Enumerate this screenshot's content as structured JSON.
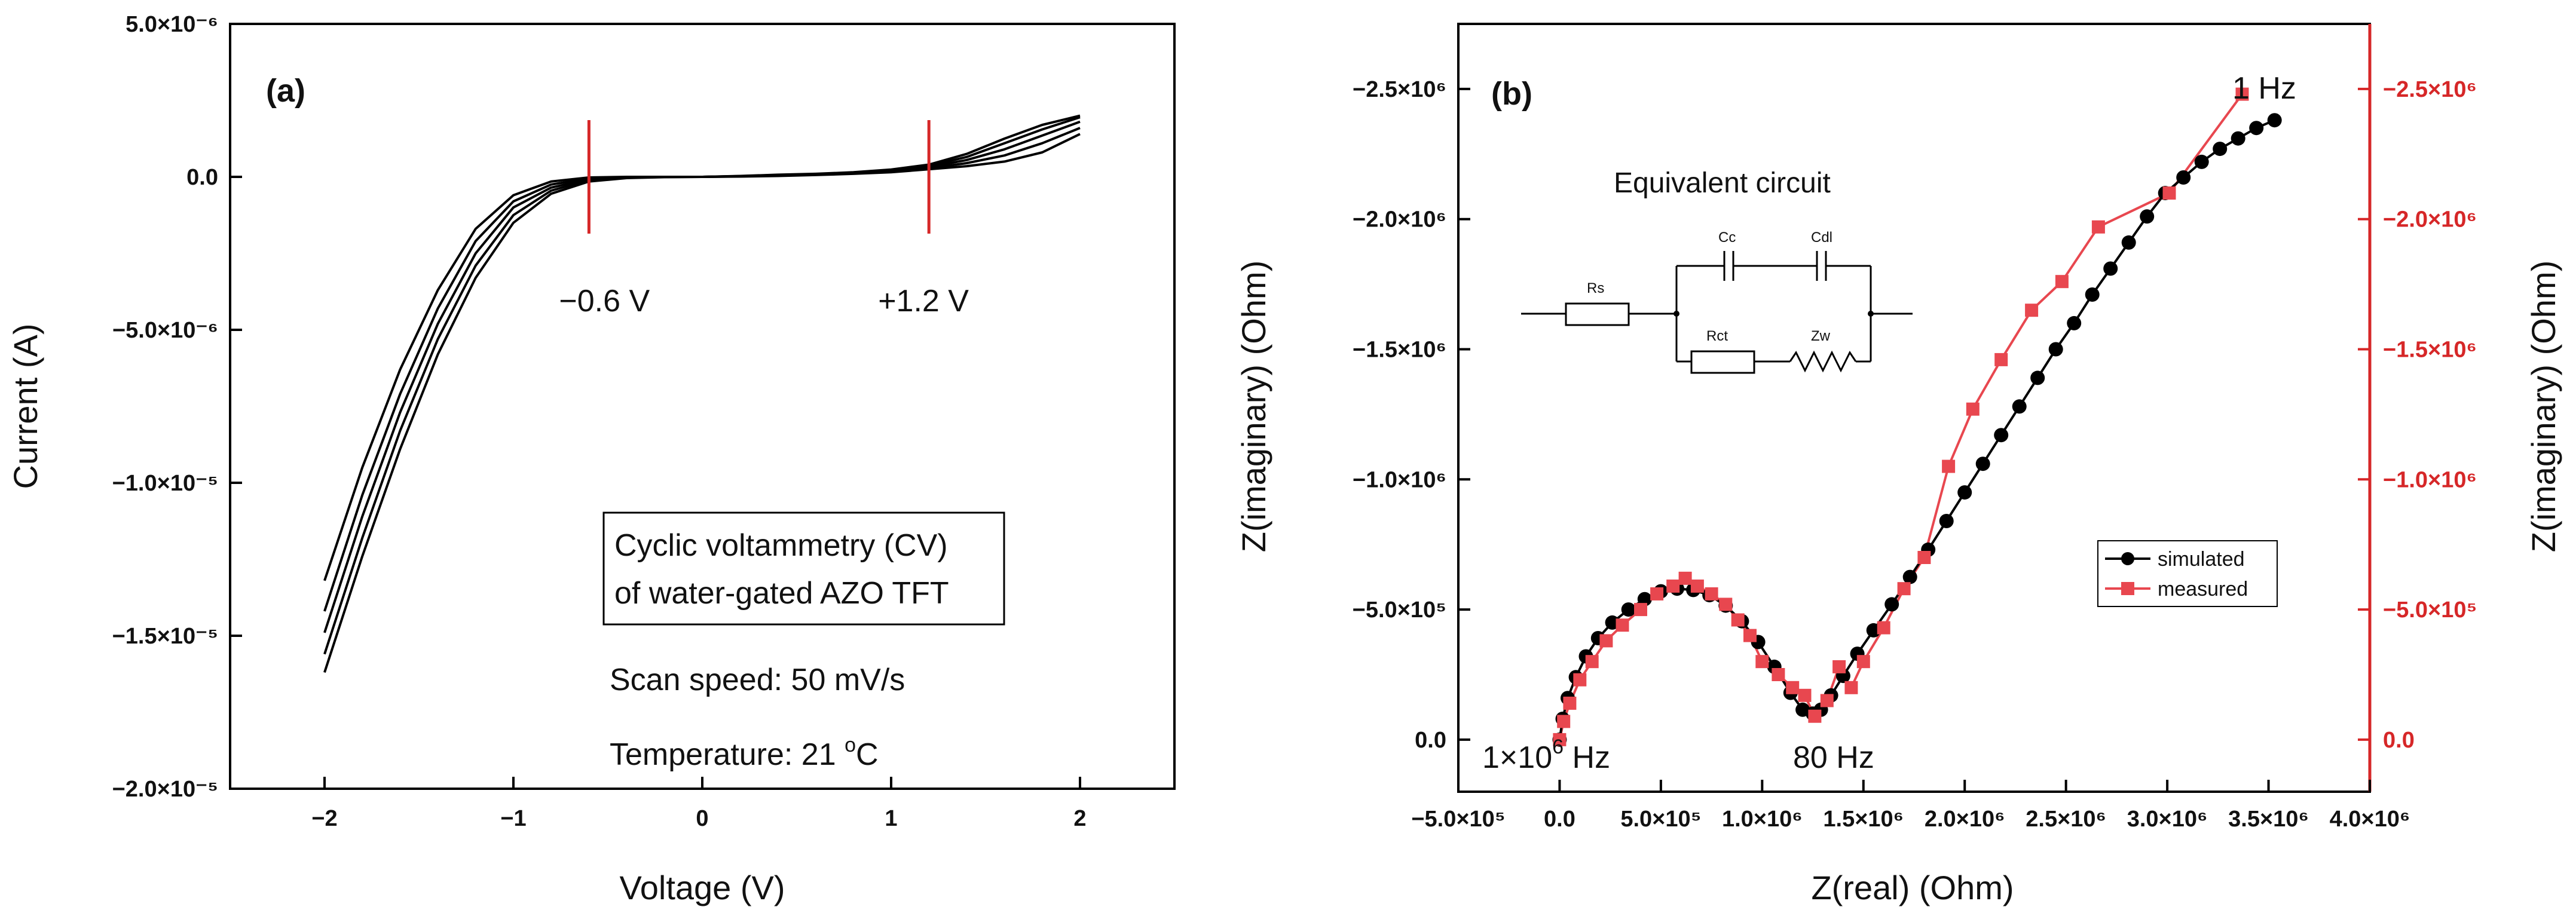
{
  "colors": {
    "black": "#000000",
    "red": "#d62728",
    "marker_red": "#e8474f"
  },
  "chart_data": [
    {
      "type": "line",
      "panel_label": "(a)",
      "xlabel": "Voltage (V)",
      "ylabel": "Current (A)",
      "xlim": [
        -2.5,
        2.5
      ],
      "ylim": [
        -2e-05,
        5e-06
      ],
      "x_ticks": [
        -2,
        -1,
        0,
        1,
        2
      ],
      "x_tick_labels": [
        "−2",
        "−1",
        "0",
        "1",
        "2"
      ],
      "y_ticks": [
        5e-06,
        0,
        -5e-06,
        -1e-05,
        -1.5e-05,
        -2e-05
      ],
      "y_tick_labels": [
        "5.0×10⁻⁶",
        "0.0",
        "−5.0×10⁻⁶",
        "−1.0×10⁻⁵",
        "−1.5×10⁻⁵",
        "−2.0×10⁻⁵"
      ],
      "grid": false,
      "series": [
        {
          "x": [
            -2.0,
            -1.8,
            -1.6,
            -1.4,
            -1.2,
            -1.0,
            -0.8,
            -0.6,
            -0.4,
            -0.2,
            0.0,
            0.2,
            0.4,
            0.6,
            0.8,
            1.0,
            1.2,
            1.4,
            1.6,
            1.8,
            2.0
          ],
          "y": [
            -1.62e-05,
            -1.24e-05,
            -8.9e-06,
            -5.8e-06,
            -3.3e-06,
            -1.5e-06,
            -5.5e-07,
            -1.5e-07,
            -4e-08,
            -1e-08,
            0,
            1e-08,
            3e-08,
            6e-08,
            1e-07,
            1.5e-07,
            2.5e-07,
            3.5e-07,
            5e-07,
            8e-07,
            1.4e-06
          ]
        },
        {
          "x": [
            -2.0,
            -1.8,
            -1.6,
            -1.4,
            -1.2,
            -1.0,
            -0.8,
            -0.6,
            -0.4,
            -0.2,
            0.0,
            0.2,
            0.4,
            0.6,
            0.8,
            1.0,
            1.2,
            1.4,
            1.6,
            1.8,
            2.0
          ],
          "y": [
            -1.56e-05,
            -1.18e-05,
            -8.3e-06,
            -5.3e-06,
            -2.9e-06,
            -1.25e-06,
            -4.5e-07,
            -1.1e-07,
            -3e-08,
            -5e-09,
            0,
            1.5e-08,
            4e-08,
            7e-08,
            1.1e-07,
            1.7e-07,
            2.8e-07,
            4.5e-07,
            7e-07,
            1.1e-06,
            1.6e-06
          ]
        },
        {
          "x": [
            -2.0,
            -1.8,
            -1.6,
            -1.4,
            -1.2,
            -1.0,
            -0.8,
            -0.6,
            -0.4,
            -0.2,
            0.0,
            0.2,
            0.4,
            0.6,
            0.8,
            1.0,
            1.2,
            1.4,
            1.6,
            1.8,
            2.0
          ],
          "y": [
            -1.49e-05,
            -1.11e-05,
            -7.7e-06,
            -4.8e-06,
            -2.5e-06,
            -1e-06,
            -3.5e-07,
            -8e-08,
            -2e-08,
            0,
            0,
            2e-08,
            5e-08,
            8e-08,
            1.2e-07,
            1.9e-07,
            3.2e-07,
            5.5e-07,
            9e-07,
            1.35e-06,
            1.8e-06
          ]
        },
        {
          "x": [
            -2.0,
            -1.8,
            -1.6,
            -1.4,
            -1.2,
            -1.0,
            -0.8,
            -0.6,
            -0.4,
            -0.2,
            0.0,
            0.2,
            0.4,
            0.6,
            0.8,
            1.0,
            1.2,
            1.4,
            1.6,
            1.8,
            2.0
          ],
          "y": [
            -1.42e-05,
            -1.04e-05,
            -7.1e-06,
            -4.3e-06,
            -2.1e-06,
            -8e-07,
            -2.5e-07,
            -5e-08,
            -1e-08,
            0,
            0,
            2.5e-08,
            6e-08,
            9e-08,
            1.3e-07,
            2.1e-07,
            3.6e-07,
            6.5e-07,
            1.1e-06,
            1.55e-06,
            1.95e-06
          ]
        },
        {
          "x": [
            -2.0,
            -1.8,
            -1.6,
            -1.4,
            -1.2,
            -1.0,
            -0.8,
            -0.6,
            -0.4,
            -0.2,
            0.0,
            0.2,
            0.4,
            0.6,
            0.8,
            1.0,
            1.2,
            1.4,
            1.6,
            1.8,
            2.0
          ],
          "y": [
            -1.32e-05,
            -9.5e-06,
            -6.3e-06,
            -3.7e-06,
            -1.7e-06,
            -6e-07,
            -1.5e-07,
            -2e-08,
            0,
            0,
            0,
            3e-08,
            7e-08,
            1e-07,
            1.5e-07,
            2.4e-07,
            4e-07,
            7.5e-07,
            1.25e-06,
            1.7e-06,
            2e-06
          ]
        }
      ],
      "markers": [
        {
          "x": -0.6,
          "label": "−0.6 V"
        },
        {
          "x": 1.2,
          "label": "+1.2 V"
        }
      ],
      "annotations": {
        "box_line1": "Cyclic voltammetry (CV)",
        "box_line2": "of water-gated AZO TFT",
        "scan_speed": "Scan speed: 50 mV/s",
        "temperature_prefix": "Temperature: 21 ",
        "temperature_sup": "o",
        "temperature_suffix": "C"
      }
    },
    {
      "type": "scatter",
      "panel_label": "(b)",
      "xlabel": "Z(real) (Ohm)",
      "ylabel": "Z(imaginary) (Ohm)",
      "ylabel_right": "Z(imaginary) (Ohm)",
      "xlim": [
        -500000.0,
        4000000.0
      ],
      "ylim": [
        200000.0,
        -2750000.0
      ],
      "x_ticks": [
        -500000.0,
        0,
        500000.0,
        1000000.0,
        1500000.0,
        2000000.0,
        2500000.0,
        3000000.0,
        3500000.0,
        4000000.0
      ],
      "x_tick_labels": [
        "−5.0×10⁵",
        "0.0",
        "5.0×10⁵",
        "1.0×10⁶",
        "1.5×10⁶",
        "2.0×10⁶",
        "2.5×10⁶",
        "3.0×10⁶",
        "3.5×10⁶",
        "4.0×10⁶"
      ],
      "y_ticks": [
        -2500000.0,
        -2000000.0,
        -1500000.0,
        -1000000.0,
        -500000.0,
        0
      ],
      "y_tick_labels": [
        "−2.5×10⁶",
        "−2.0×10⁶",
        "−1.5×10⁶",
        "−1.0×10⁶",
        "−5.0×10⁵",
        "0.0"
      ],
      "grid": false,
      "legend_placement": "lower-right",
      "series": [
        {
          "name": "simulated",
          "x": [
            0,
            15000,
            40000,
            80000,
            130000,
            190000,
            260000,
            340000,
            420000,
            500000,
            580000,
            660000,
            740000,
            820000,
            900000,
            980000,
            1060000,
            1140000,
            1200000,
            1250000,
            1290000,
            1340000,
            1400000,
            1470000,
            1550000,
            1640000,
            1730000,
            1820000,
            1910000,
            2000000,
            2090000,
            2180000,
            2270000,
            2360000,
            2450000,
            2540000,
            2630000,
            2720000,
            2810000,
            2900000,
            2990000,
            3080000,
            3170000,
            3260000,
            3350000,
            3440000,
            3530000
          ],
          "y": [
            0,
            -80000,
            -160000,
            -240000,
            -320000,
            -390000,
            -450000,
            -500000,
            -540000,
            -570000,
            -580000,
            -575000,
            -555000,
            -515000,
            -455000,
            -375000,
            -280000,
            -180000,
            -115000,
            -100000,
            -115000,
            -170000,
            -245000,
            -330000,
            -420000,
            -520000,
            -625000,
            -730000,
            -840000,
            -950000,
            -1060000,
            -1170000,
            -1280000,
            -1390000,
            -1500000,
            -1600000,
            -1710000,
            -1810000,
            -1910000,
            -2010000,
            -2100000,
            -2160000,
            -2220000,
            -2270000,
            -2310000,
            -2350000,
            -2380000
          ]
        },
        {
          "name": "measured",
          "x": [
            0,
            20000,
            50000,
            100000,
            160000,
            230000,
            310000,
            400000,
            480000,
            560000,
            620000,
            680000,
            750000,
            820000,
            880000,
            940000,
            1000000,
            1080000,
            1150000,
            1210000,
            1260000,
            1320000,
            1380000,
            1440000,
            1500000,
            1600000,
            1700000,
            1800000,
            1920000,
            2040000,
            2180000,
            2330000,
            2480000,
            2660000,
            3010000,
            3370000
          ],
          "y": [
            0,
            -70000,
            -140000,
            -230000,
            -300000,
            -380000,
            -440000,
            -500000,
            -560000,
            -590000,
            -620000,
            -590000,
            -560000,
            -520000,
            -460000,
            -400000,
            -300000,
            -250000,
            -200000,
            -170000,
            -90000,
            -150000,
            -280000,
            -200000,
            -300000,
            -430000,
            -580000,
            -700000,
            -1050000,
            -1270000,
            -1460000,
            -1650000,
            -1760000,
            -1970000,
            -2100000,
            -2480000
          ]
        }
      ],
      "annotations": {
        "freq_top": "1 Hz",
        "freq_mid": "80 Hz",
        "freq_left_base": "1×10",
        "freq_left_exp": "6",
        "freq_left_unit": " Hz",
        "circuit_title": "Equivalent circuit",
        "circuit_labels": {
          "rs": "Rs",
          "cc": "Cc",
          "cdl": "Cdl",
          "rct": "Rct",
          "zw": "Zw"
        }
      }
    }
  ]
}
